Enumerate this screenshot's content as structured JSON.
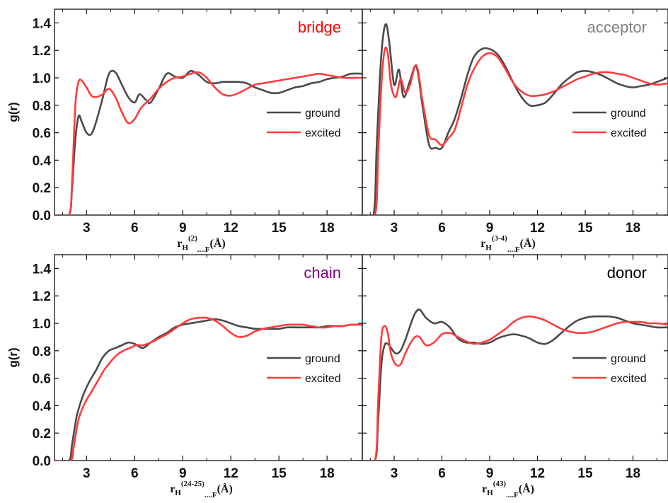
{
  "colors": {
    "ground": "#4a4a4a",
    "excited": "#ff3b3b",
    "axis": "#111111"
  },
  "chart_data": [
    {
      "type": "line",
      "title": "bridge",
      "title_color": "#ff0000",
      "ylabel": "g(r)",
      "xlabel": {
        "r": "r",
        "H": "H",
        "sup": "(2)",
        "dots": "....F",
        "unit": "(Å)"
      },
      "xlim": [
        1,
        20.2
      ],
      "ylim": [
        0,
        1.5
      ],
      "xticks": [
        "3",
        "6",
        "9",
        "12",
        "15",
        "18"
      ],
      "yticks": [
        "0.0",
        "0.2",
        "0.4",
        "0.6",
        "0.8",
        "1.0",
        "1.2",
        "1.4"
      ],
      "legend": {
        "position": "right",
        "entries": [
          "ground",
          "excited"
        ]
      },
      "series": [
        {
          "name": "ground",
          "x": [
            1.0,
            1.9,
            2.1,
            2.3,
            2.5,
            2.7,
            3.0,
            3.3,
            3.6,
            4.0,
            4.4,
            4.8,
            5.2,
            5.6,
            6.0,
            6.3,
            6.7,
            7.0,
            7.5,
            8.0,
            8.5,
            9.0,
            9.5,
            10.0,
            10.5,
            11.0,
            11.5,
            12.0,
            12.5,
            13.0,
            13.5,
            14.0,
            14.5,
            15.0,
            15.5,
            16.0,
            16.5,
            17.0,
            17.5,
            18.0,
            18.5,
            19.0,
            19.5,
            20.2
          ],
          "y": [
            0.0,
            0.0,
            0.2,
            0.55,
            0.72,
            0.68,
            0.6,
            0.59,
            0.68,
            0.85,
            1.03,
            1.04,
            0.95,
            0.86,
            0.82,
            0.88,
            0.84,
            0.82,
            0.92,
            1.03,
            1.01,
            1.0,
            1.05,
            1.02,
            0.97,
            0.96,
            0.97,
            0.97,
            0.97,
            0.96,
            0.93,
            0.91,
            0.89,
            0.89,
            0.91,
            0.93,
            0.94,
            0.96,
            0.97,
            0.99,
            1.0,
            1.01,
            1.03,
            1.03
          ]
        },
        {
          "name": "excited",
          "x": [
            1.0,
            1.9,
            2.1,
            2.3,
            2.5,
            2.7,
            3.0,
            3.3,
            3.6,
            4.0,
            4.4,
            4.8,
            5.2,
            5.6,
            6.0,
            6.4,
            7.0,
            7.5,
            8.0,
            8.5,
            9.0,
            9.5,
            10.0,
            10.5,
            11.0,
            11.5,
            12.0,
            12.5,
            13.0,
            13.5,
            14.0,
            14.5,
            15.0,
            15.5,
            16.0,
            16.5,
            17.0,
            17.5,
            18.0,
            18.5,
            19.0,
            19.5,
            20.2
          ],
          "y": [
            0.0,
            0.0,
            0.25,
            0.8,
            0.97,
            0.98,
            0.93,
            0.87,
            0.86,
            0.88,
            0.92,
            0.86,
            0.75,
            0.67,
            0.7,
            0.78,
            0.85,
            0.92,
            0.97,
            1.0,
            1.01,
            1.03,
            1.04,
            1.0,
            0.93,
            0.88,
            0.87,
            0.89,
            0.92,
            0.95,
            0.96,
            0.97,
            0.98,
            0.99,
            1.0,
            1.01,
            1.02,
            1.03,
            1.02,
            1.01,
            1.0,
            1.0,
            1.0
          ]
        }
      ]
    },
    {
      "type": "line",
      "title": "acceptor",
      "title_color": "#808080",
      "ylabel": "",
      "xlabel": {
        "r": "r",
        "H": "H",
        "sup": "(3-4)",
        "dots": "....F",
        "unit": "(Å)"
      },
      "xlim": [
        1,
        20.2
      ],
      "ylim": [
        0,
        1.5
      ],
      "xticks": [
        "3",
        "6",
        "9",
        "12",
        "15",
        "18"
      ],
      "yticks": [],
      "legend": {
        "position": "right",
        "entries": [
          "ground",
          "excited"
        ]
      },
      "series": [
        {
          "name": "ground",
          "x": [
            1.0,
            1.7,
            1.9,
            2.1,
            2.3,
            2.5,
            2.7,
            3.0,
            3.3,
            3.6,
            4.0,
            4.4,
            4.8,
            5.2,
            5.6,
            6.0,
            6.4,
            6.8,
            7.2,
            7.6,
            8.0,
            8.5,
            9.0,
            9.5,
            10.0,
            10.5,
            11.0,
            11.5,
            12.0,
            12.5,
            13.0,
            13.5,
            14.0,
            14.5,
            15.0,
            15.5,
            16.0,
            16.5,
            17.0,
            17.5,
            18.0,
            18.5,
            19.0,
            19.5,
            20.2
          ],
          "y": [
            0.0,
            0.0,
            0.5,
            1.0,
            1.3,
            1.39,
            1.25,
            0.95,
            1.06,
            0.86,
            0.98,
            1.08,
            0.78,
            0.51,
            0.49,
            0.49,
            0.6,
            0.7,
            0.85,
            1.02,
            1.15,
            1.21,
            1.21,
            1.17,
            1.08,
            0.96,
            0.86,
            0.8,
            0.8,
            0.82,
            0.88,
            0.95,
            1.0,
            1.04,
            1.05,
            1.04,
            1.02,
            0.99,
            0.96,
            0.94,
            0.93,
            0.94,
            0.95,
            0.97,
            1.0
          ]
        },
        {
          "name": "excited",
          "x": [
            1.0,
            1.8,
            2.0,
            2.2,
            2.4,
            2.6,
            2.8,
            3.1,
            3.4,
            3.7,
            4.0,
            4.4,
            4.8,
            5.2,
            5.6,
            6.0,
            6.4,
            6.8,
            7.2,
            7.6,
            8.0,
            8.5,
            9.0,
            9.5,
            10.0,
            10.5,
            11.0,
            11.5,
            12.0,
            12.5,
            13.0,
            13.5,
            14.0,
            14.5,
            15.0,
            15.5,
            16.0,
            16.5,
            17.0,
            17.5,
            18.0,
            18.5,
            19.0,
            19.5,
            20.2
          ],
          "y": [
            0.0,
            0.0,
            0.45,
            0.95,
            1.2,
            1.18,
            0.95,
            0.86,
            0.99,
            0.89,
            0.95,
            1.09,
            0.82,
            0.58,
            0.55,
            0.51,
            0.56,
            0.62,
            0.78,
            0.95,
            1.06,
            1.15,
            1.18,
            1.15,
            1.06,
            0.96,
            0.9,
            0.87,
            0.87,
            0.88,
            0.9,
            0.93,
            0.96,
            0.99,
            1.01,
            1.03,
            1.04,
            1.04,
            1.03,
            1.02,
            1.0,
            0.98,
            0.96,
            0.95,
            0.96
          ]
        }
      ]
    },
    {
      "type": "line",
      "title": "chain",
      "title_color": "#800080",
      "ylabel": "g(r)",
      "xlabel": {
        "r": "r",
        "H": "H",
        "sup": "(24-25)",
        "dots": "....F",
        "unit": "(Å)"
      },
      "xlim": [
        1,
        20.2
      ],
      "ylim": [
        0,
        1.5
      ],
      "xticks": [
        "3",
        "6",
        "9",
        "12",
        "15",
        "18"
      ],
      "yticks": [
        "0.0",
        "0.2",
        "0.4",
        "0.6",
        "0.8",
        "1.0",
        "1.2",
        "1.4"
      ],
      "legend": {
        "position": "right",
        "entries": [
          "ground",
          "excited"
        ]
      },
      "series": [
        {
          "name": "ground",
          "x": [
            1.0,
            1.9,
            2.1,
            2.4,
            2.8,
            3.2,
            3.6,
            4.0,
            4.4,
            4.8,
            5.2,
            5.6,
            6.0,
            6.5,
            7.0,
            7.5,
            8.0,
            8.5,
            9.0,
            9.5,
            10.0,
            10.5,
            11.0,
            11.5,
            12.0,
            12.5,
            13.0,
            13.5,
            14.0,
            14.5,
            15.0,
            15.5,
            16.0,
            16.5,
            17.0,
            17.5,
            18.0,
            18.5,
            19.0,
            19.5,
            20.2
          ],
          "y": [
            0.0,
            0.0,
            0.12,
            0.33,
            0.48,
            0.58,
            0.66,
            0.75,
            0.8,
            0.82,
            0.84,
            0.86,
            0.85,
            0.82,
            0.86,
            0.9,
            0.93,
            0.97,
            0.99,
            1.0,
            1.01,
            1.02,
            1.03,
            1.02,
            1.0,
            0.98,
            0.97,
            0.96,
            0.96,
            0.96,
            0.96,
            0.97,
            0.97,
            0.97,
            0.97,
            0.97,
            0.98,
            0.98,
            0.98,
            0.99,
            0.99
          ]
        },
        {
          "name": "excited",
          "x": [
            1.0,
            2.0,
            2.2,
            2.5,
            2.9,
            3.3,
            3.7,
            4.1,
            4.5,
            4.9,
            5.3,
            5.7,
            6.1,
            6.5,
            7.0,
            7.5,
            8.0,
            8.5,
            9.0,
            9.5,
            10.0,
            10.5,
            11.0,
            11.5,
            12.0,
            12.5,
            13.0,
            13.5,
            14.0,
            14.5,
            15.0,
            15.5,
            16.0,
            16.5,
            17.0,
            17.5,
            18.0,
            18.5,
            19.0,
            19.5,
            20.2
          ],
          "y": [
            0.0,
            0.0,
            0.1,
            0.3,
            0.42,
            0.5,
            0.58,
            0.66,
            0.72,
            0.77,
            0.8,
            0.82,
            0.84,
            0.84,
            0.86,
            0.89,
            0.92,
            0.96,
            1.0,
            1.03,
            1.04,
            1.04,
            1.02,
            0.98,
            0.93,
            0.9,
            0.91,
            0.94,
            0.96,
            0.97,
            0.98,
            0.99,
            0.99,
            0.99,
            0.98,
            0.97,
            0.97,
            0.98,
            0.98,
            0.99,
            0.99
          ]
        }
      ]
    },
    {
      "type": "line",
      "title": "donor",
      "title_color": "#000000",
      "ylabel": "",
      "xlabel": {
        "r": "r",
        "H": "H",
        "sup": "(43)",
        "dots": "....F",
        "unit": "(Å)"
      },
      "xlim": [
        1,
        20.2
      ],
      "ylim": [
        0,
        1.5
      ],
      "xticks": [
        "3",
        "6",
        "9",
        "12",
        "15",
        "18"
      ],
      "yticks": [],
      "legend": {
        "position": "right",
        "entries": [
          "ground",
          "excited"
        ]
      },
      "series": [
        {
          "name": "ground",
          "x": [
            1.0,
            1.8,
            2.0,
            2.2,
            2.4,
            2.6,
            2.8,
            3.1,
            3.4,
            3.7,
            4.0,
            4.3,
            4.6,
            5.0,
            5.5,
            6.0,
            6.5,
            7.0,
            7.5,
            8.0,
            8.5,
            9.0,
            9.5,
            10.0,
            10.5,
            11.0,
            11.5,
            12.0,
            12.5,
            13.0,
            13.5,
            14.0,
            14.5,
            15.0,
            15.5,
            16.0,
            16.5,
            17.0,
            17.5,
            18.0,
            18.5,
            19.0,
            19.5,
            20.2
          ],
          "y": [
            0.0,
            0.0,
            0.3,
            0.7,
            0.84,
            0.85,
            0.82,
            0.78,
            0.8,
            0.88,
            0.98,
            1.07,
            1.1,
            1.04,
            1.0,
            1.01,
            0.97,
            0.89,
            0.86,
            0.86,
            0.85,
            0.86,
            0.89,
            0.91,
            0.92,
            0.91,
            0.89,
            0.86,
            0.85,
            0.88,
            0.93,
            0.98,
            1.02,
            1.04,
            1.05,
            1.05,
            1.05,
            1.04,
            1.02,
            1.0,
            0.99,
            0.98,
            0.97,
            0.97
          ]
        },
        {
          "name": "excited",
          "x": [
            1.0,
            1.8,
            2.0,
            2.2,
            2.4,
            2.6,
            2.8,
            3.1,
            3.4,
            3.7,
            4.0,
            4.3,
            4.6,
            5.0,
            5.5,
            6.0,
            6.5,
            7.0,
            7.5,
            8.0,
            8.5,
            9.0,
            9.5,
            10.0,
            10.5,
            11.0,
            11.5,
            12.0,
            12.5,
            13.0,
            13.5,
            14.0,
            14.5,
            15.0,
            15.5,
            16.0,
            16.5,
            17.0,
            17.5,
            18.0,
            18.5,
            19.0,
            19.5,
            20.2
          ],
          "y": [
            0.0,
            0.0,
            0.45,
            0.9,
            0.98,
            0.93,
            0.78,
            0.7,
            0.7,
            0.78,
            0.85,
            0.9,
            0.9,
            0.84,
            0.86,
            0.92,
            0.93,
            0.9,
            0.87,
            0.85,
            0.86,
            0.88,
            0.92,
            0.96,
            1.01,
            1.04,
            1.05,
            1.04,
            1.02,
            0.99,
            0.96,
            0.94,
            0.93,
            0.93,
            0.94,
            0.96,
            0.98,
            1.0,
            1.01,
            1.01,
            1.01,
            1.0,
            1.0,
            0.99
          ]
        }
      ]
    }
  ]
}
